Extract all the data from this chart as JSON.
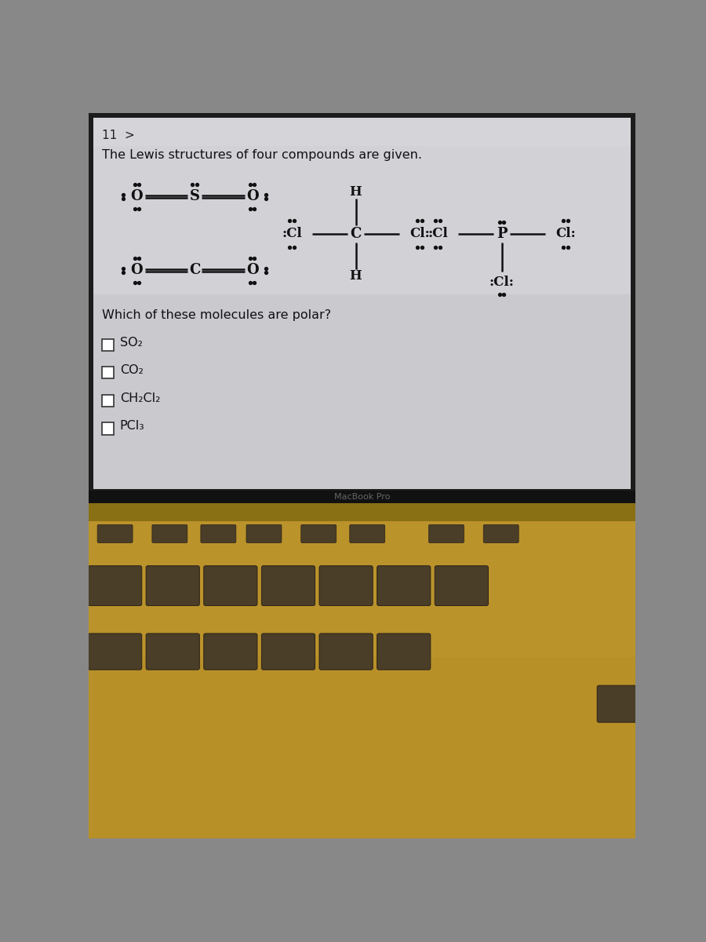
{
  "header_text": "11  >",
  "title_text": "The Lewis structures of four compounds are given.",
  "question_text": "Which of these molecules are polar?",
  "choices": [
    "SO₂",
    "CO₂",
    "CH₂Cl₂",
    "PCl₃"
  ],
  "macbook_label": "MacBook Pro",
  "screen_bg": "#c8c8cc",
  "screen_bg2": "#d2d2d6",
  "header_bg": "#d4d4d8",
  "bezel_color": "#1a1a1a",
  "body_color_top": "#b8962a",
  "body_color_mid": "#c8a030",
  "body_color_bot": "#a07820",
  "key_color": "#4a3e28",
  "key_edge": "#332a18",
  "text_color": "#111111",
  "key_text_color": "#cccccc"
}
